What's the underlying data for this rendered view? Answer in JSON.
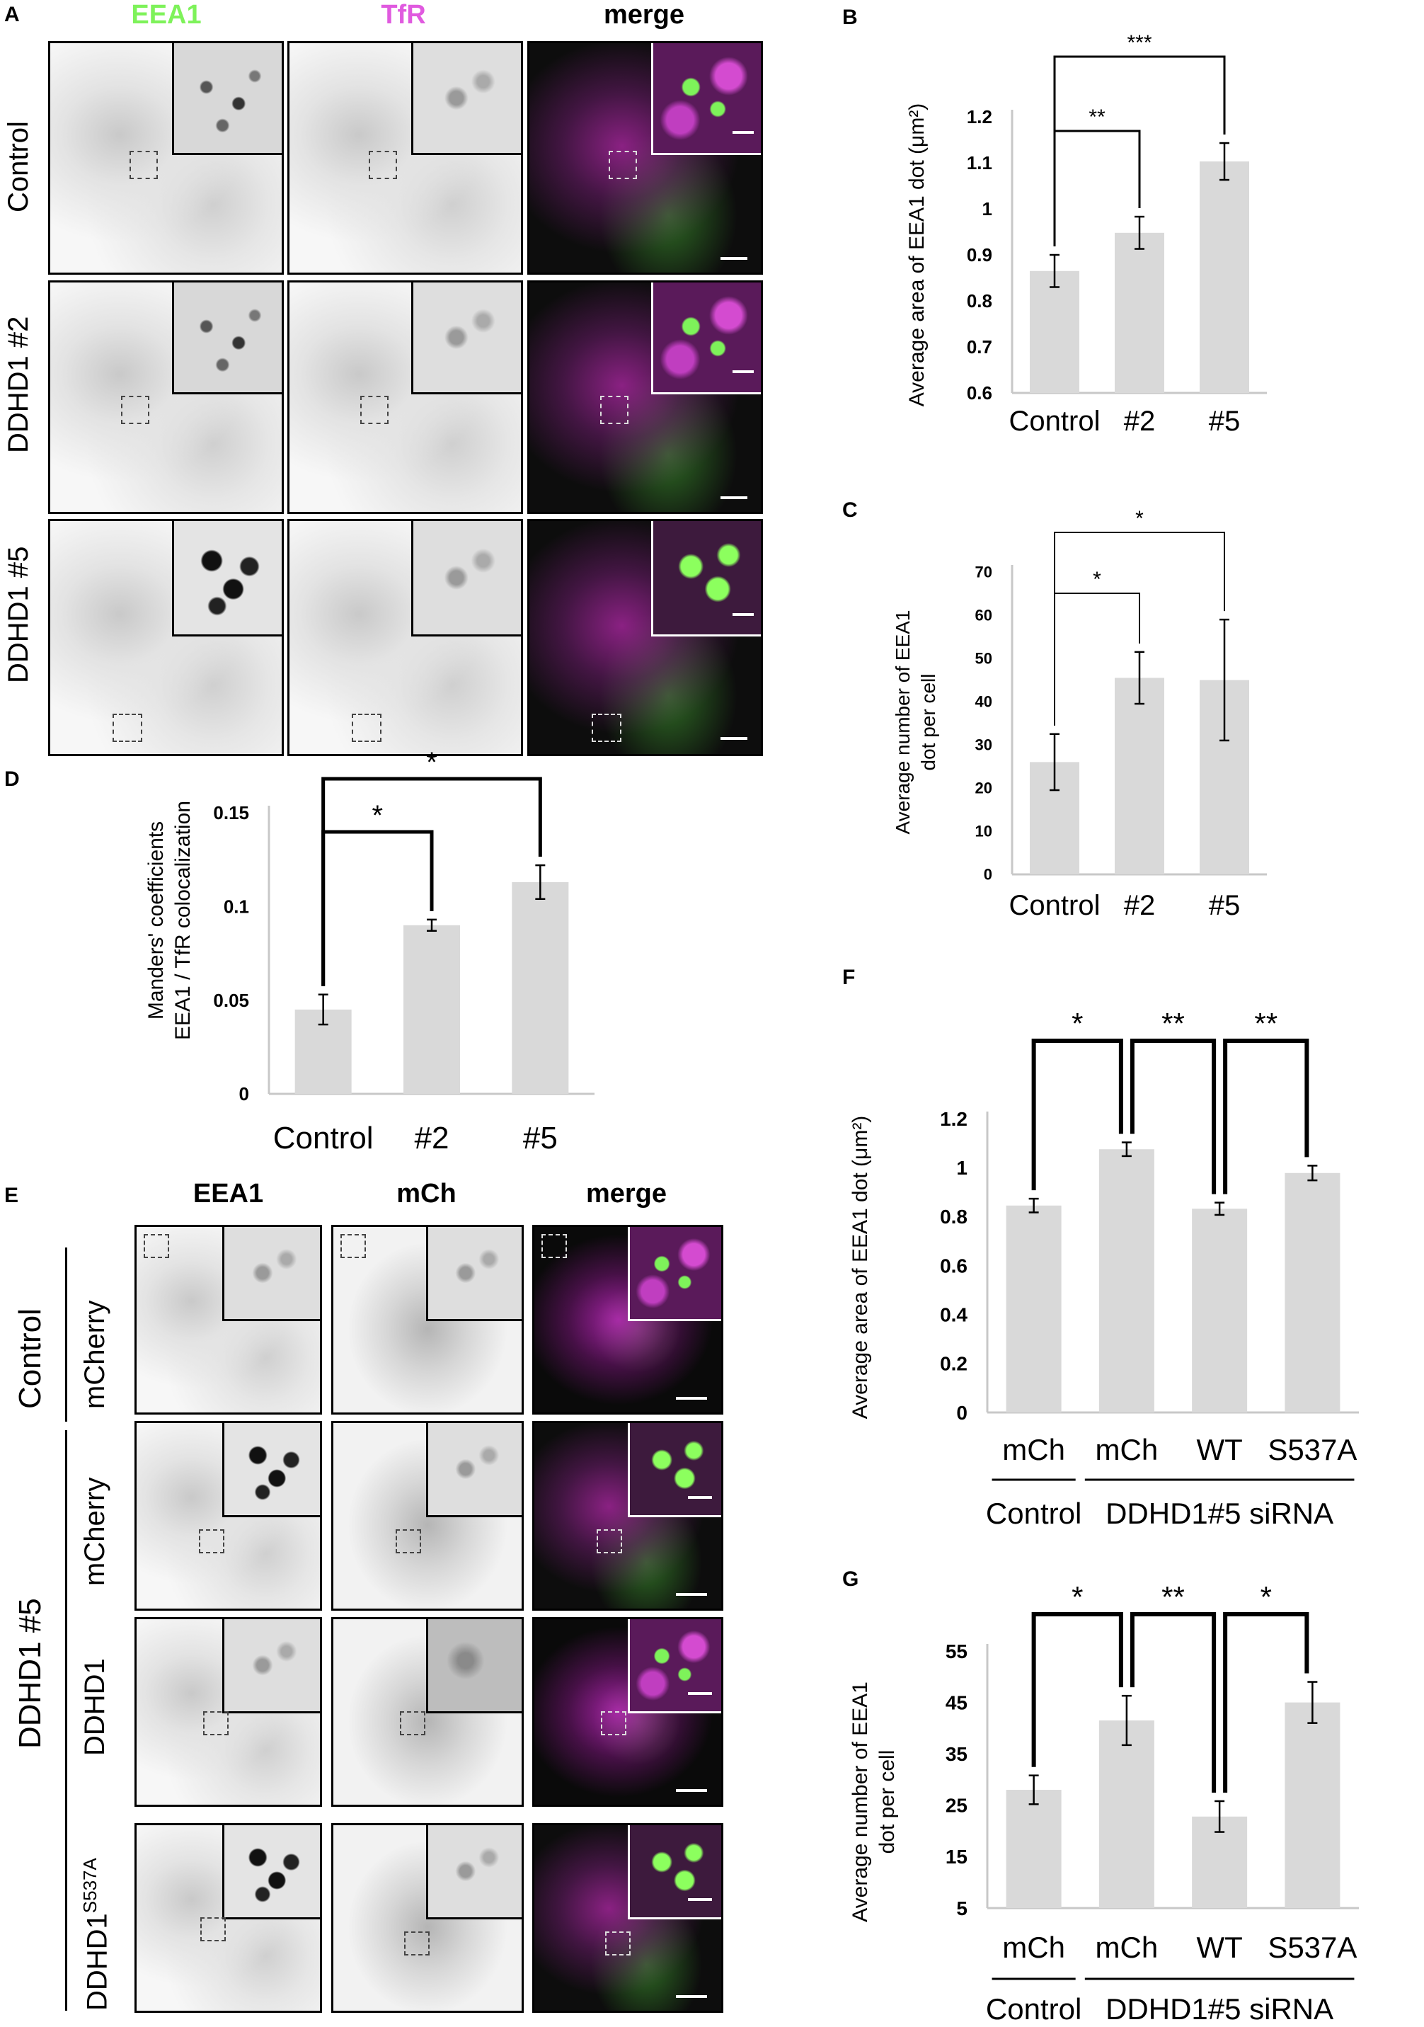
{
  "panel_A": {
    "letter": "A",
    "columns": [
      "EEA1",
      "TfR",
      "merge"
    ],
    "column_colors": {
      "EEA1": "#7ef25a",
      "TfR": "#e05adf",
      "merge": "#000000"
    },
    "rows": [
      "Control",
      "DDHD1 #2",
      "DDHD1 #5"
    ]
  },
  "panel_E": {
    "letter": "E",
    "columns": [
      "EEA1",
      "mCh",
      "merge"
    ],
    "group_labels": [
      "Control",
      "DDHD1 #5"
    ],
    "rows": [
      "mCherry",
      "mCherry",
      "DDHD1",
      "DDHD1"
    ],
    "row4_superscript": "S537A"
  },
  "chart_data": [
    {
      "panel": "B",
      "type": "bar",
      "categories": [
        "Control",
        "#2",
        "#5"
      ],
      "values": [
        0.865,
        0.948,
        1.103
      ],
      "errors": [
        0.035,
        0.035,
        0.04
      ],
      "ylabel": "Average area of EEA1 dot (μm²)",
      "ylim": [
        0.6,
        1.2
      ],
      "yticks": [
        "0.6",
        "0.7",
        "0.8",
        "0.9",
        "1",
        "1.1",
        "1.2"
      ],
      "significance": [
        {
          "from": 0,
          "to": 1,
          "label": "**"
        },
        {
          "from": 0,
          "to": 2,
          "label": "***"
        }
      ],
      "bar_color": "#d9d9d9"
    },
    {
      "panel": "C",
      "type": "bar",
      "categories": [
        "Control",
        "#2",
        "#5"
      ],
      "values": [
        26,
        45.5,
        45
      ],
      "errors": [
        6.5,
        6,
        14
      ],
      "ylabel_lines": [
        "Average number of EEA1",
        "dot per cell"
      ],
      "ylim": [
        0,
        70
      ],
      "yticks": [
        "0",
        "10",
        "20",
        "30",
        "40",
        "50",
        "60",
        "70"
      ],
      "significance": [
        {
          "from": 0,
          "to": 1,
          "label": "*"
        },
        {
          "from": 0,
          "to": 2,
          "label": "*"
        }
      ],
      "bar_color": "#d9d9d9"
    },
    {
      "panel": "D",
      "type": "bar",
      "categories": [
        "Control",
        "#2",
        "#5"
      ],
      "values": [
        0.045,
        0.09,
        0.113
      ],
      "errors": [
        0.008,
        0.003,
        0.009
      ],
      "ylabel_lines": [
        "Manders' coefficients",
        "EEA1 / TfR colocalization"
      ],
      "ylim": [
        0,
        0.15
      ],
      "yticks": [
        "0",
        "0.05",
        "0.1",
        "0.15"
      ],
      "significance": [
        {
          "from": 0,
          "to": 1,
          "label": "*"
        },
        {
          "from": 0,
          "to": 2,
          "label": "*"
        }
      ],
      "bar_color": "#d9d9d9"
    },
    {
      "panel": "F",
      "type": "bar",
      "categories": [
        "mCh",
        "mCh",
        "WT",
        "S537A"
      ],
      "values": [
        0.845,
        1.075,
        0.832,
        0.978
      ],
      "errors": [
        0.028,
        0.028,
        0.025,
        0.03
      ],
      "ylabel": "Average area of EEA1 dot (μm²)",
      "ylim": [
        0,
        1.2
      ],
      "yticks": [
        "0",
        "0.2",
        "0.4",
        "0.6",
        "0.8",
        "1",
        "1.2"
      ],
      "groups": [
        {
          "label": "Control",
          "from": 0,
          "to": 0
        },
        {
          "label": "DDHD1#5 siRNA",
          "from": 1,
          "to": 3
        }
      ],
      "significance": [
        {
          "from": 0,
          "to": 1,
          "label": "*"
        },
        {
          "from": 1,
          "to": 2,
          "label": "**"
        },
        {
          "from": 2,
          "to": 3,
          "label": "**"
        }
      ],
      "bar_color": "#d9d9d9"
    },
    {
      "panel": "G",
      "type": "bar",
      "categories": [
        "mCh",
        "mCh",
        "WT",
        "S537A"
      ],
      "values": [
        28,
        41.5,
        22.8,
        45
      ],
      "errors": [
        2.8,
        4.8,
        3,
        4
      ],
      "ylabel_lines": [
        "Average number of EEA1",
        "dot per cell"
      ],
      "ylim": [
        5,
        55
      ],
      "yticks": [
        "5",
        "15",
        "25",
        "35",
        "45",
        "55"
      ],
      "groups": [
        {
          "label": "Control",
          "from": 0,
          "to": 0
        },
        {
          "label": "DDHD1#5 siRNA",
          "from": 1,
          "to": 3
        }
      ],
      "significance": [
        {
          "from": 0,
          "to": 1,
          "label": "*"
        },
        {
          "from": 1,
          "to": 2,
          "label": "**"
        },
        {
          "from": 2,
          "to": 3,
          "label": "*"
        }
      ],
      "bar_color": "#d9d9d9"
    }
  ]
}
